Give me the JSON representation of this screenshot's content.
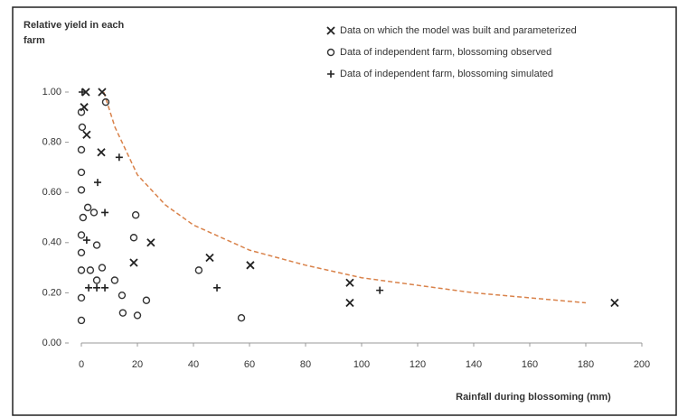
{
  "chart_data": {
    "type": "scatter",
    "y_title": "Relative yield in each farm",
    "x_title": "Rainfall during blossoming (mm)",
    "xlim": [
      0,
      200
    ],
    "xticks": [
      0,
      20,
      40,
      60,
      80,
      100,
      120,
      140,
      160,
      180,
      200
    ],
    "ylim": [
      0,
      1
    ],
    "yticks": [
      {
        "value": 0,
        "label": "0.00"
      },
      {
        "value": 0.2,
        "label": "0.20"
      },
      {
        "value": 0.4,
        "label": "0.40"
      },
      {
        "value": 0.6,
        "label": "0.60"
      },
      {
        "value": 0.8,
        "label": "0.80"
      },
      {
        "value": 1,
        "label": "1.00"
      }
    ],
    "legend": "top-right",
    "series": [
      {
        "name": "Data on which the model was built and parameterized",
        "marker": "x",
        "color": "#222222",
        "x": [
          1.6,
          7.4,
          7.1,
          24.8,
          45.8,
          60.3,
          95.8,
          95.8,
          190.3,
          18.7,
          1,
          1.9
        ],
        "y": [
          1.0,
          1.0,
          0.76,
          0.4,
          0.34,
          0.31,
          0.24,
          0.16,
          0.16,
          0.32,
          0.94,
          0.83
        ]
      },
      {
        "name": "Data of independent farm, blossoming observed",
        "marker": "o",
        "color": "#333333",
        "x": [
          0,
          0.3,
          0,
          0,
          0,
          0.6,
          0,
          0,
          0,
          0,
          0,
          2.3,
          4.5,
          5.5,
          3.2,
          5.5,
          7.4,
          11.9,
          14.5,
          14.8,
          18.7,
          19.4,
          20,
          23.2,
          41.9,
          57.1,
          8.7
        ],
        "y": [
          0.92,
          0.86,
          0.77,
          0.68,
          0.61,
          0.5,
          0.43,
          0.36,
          0.29,
          0.18,
          0.09,
          0.54,
          0.52,
          0.39,
          0.29,
          0.25,
          0.3,
          0.25,
          0.19,
          0.12,
          0.42,
          0.51,
          0.11,
          0.17,
          0.29,
          0.1,
          0.96
        ]
      },
      {
        "name": "Data of independent farm, blossoming simulated",
        "marker": "+",
        "color": "#222222",
        "x": [
          0.3,
          13.5,
          5.8,
          8.4,
          2.6,
          5.5,
          8.4,
          48.4,
          106.5,
          1.9
        ],
        "y": [
          1.0,
          0.74,
          0.64,
          0.52,
          0.22,
          0.22,
          0.22,
          0.22,
          0.21,
          0.41
        ]
      }
    ],
    "curve": {
      "color": "#d9824a",
      "x": [
        8,
        12,
        20,
        30,
        40,
        60,
        80,
        100,
        120,
        140,
        160,
        180
      ],
      "y": [
        1.0,
        0.86,
        0.67,
        0.55,
        0.47,
        0.37,
        0.31,
        0.26,
        0.23,
        0.2,
        0.18,
        0.16
      ]
    }
  }
}
